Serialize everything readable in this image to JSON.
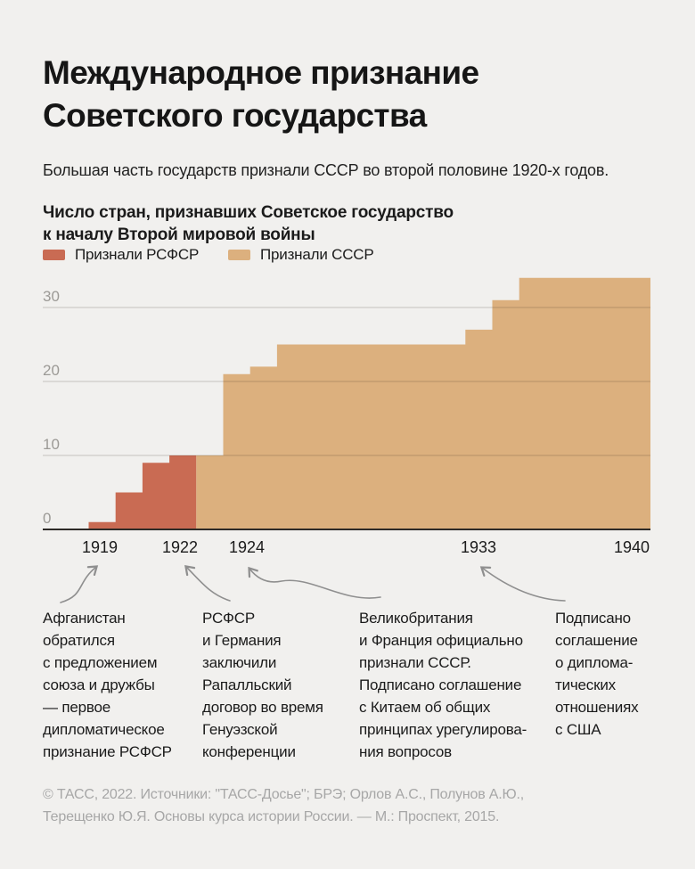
{
  "header": {
    "title": "Международное признание\nСоветского государства",
    "subtitle": "Большая часть государств признали СССР во второй половине 1920-х годов."
  },
  "chart": {
    "title": "Число стран, признавших Советское государство\nк началу Второй мировой войны"
  },
  "chart_data": {
    "type": "step-area",
    "title": "Число стран, признавших Советское государство к началу Второй мировой войны",
    "x_ticks": [
      "1919",
      "1922",
      "1924",
      "1933",
      "1940"
    ],
    "y_ticks": [
      0,
      10,
      20,
      30
    ],
    "x_range": [
      1919,
      1940
    ],
    "y_range": [
      0,
      34
    ],
    "grid": true,
    "legend_position": "top-left",
    "series": [
      {
        "name": "Признали РСФСР",
        "color": "#c96b53",
        "steps": [
          [
            1919,
            1
          ],
          [
            1920,
            5
          ],
          [
            1921,
            9
          ],
          [
            1922,
            10
          ]
        ],
        "end_year": 1923
      },
      {
        "name": "Признали СССР",
        "color": "#dcb07e",
        "steps": [
          [
            1923,
            10
          ],
          [
            1924,
            21
          ],
          [
            1925,
            22
          ],
          [
            1926,
            25
          ],
          [
            1933,
            27
          ],
          [
            1934,
            31
          ],
          [
            1935,
            34
          ]
        ],
        "end_year": 1940
      }
    ]
  },
  "annotations": [
    {
      "year": "1919",
      "text": "Афганистан\nобратился\nс предложением\nсоюза и дружбы\n— первое\nдипломатическое\nпризнание РСФСР"
    },
    {
      "year": "1922",
      "text": "РСФСР\nи Германия\nзаключили\nРапалльский\nдоговор во время\nГенуэзской\nконференции"
    },
    {
      "year": "1924",
      "text": "Великобритания\nи Франция официально\nпризнали СССР.\nПодписано соглашение\nс Китаем об общих\nпринципах урегулирова-\nния вопросов"
    },
    {
      "year": "1933",
      "text": "Подписано\nсоглашение\nо диплома-\nтических\nотношениях\nс США"
    }
  ],
  "footer": {
    "text": "© ТАСС, 2022. Источники: \"ТАСС-Досье\"; БРЭ; Орлов А.С., Полунов А.Ю.,\nТерещенко Ю.Я. Основы курса истории России. — М.: Проспект, 2015."
  },
  "colors": {
    "background": "#f1f0ee",
    "rsfsr": "#c96b53",
    "ussr": "#dcb07e",
    "text": "#1b1b1b",
    "muted_label": "#9c9a96",
    "axis": "#2e2b28",
    "arrow": "#8f8f8f",
    "footer": "#a7a7a7"
  }
}
